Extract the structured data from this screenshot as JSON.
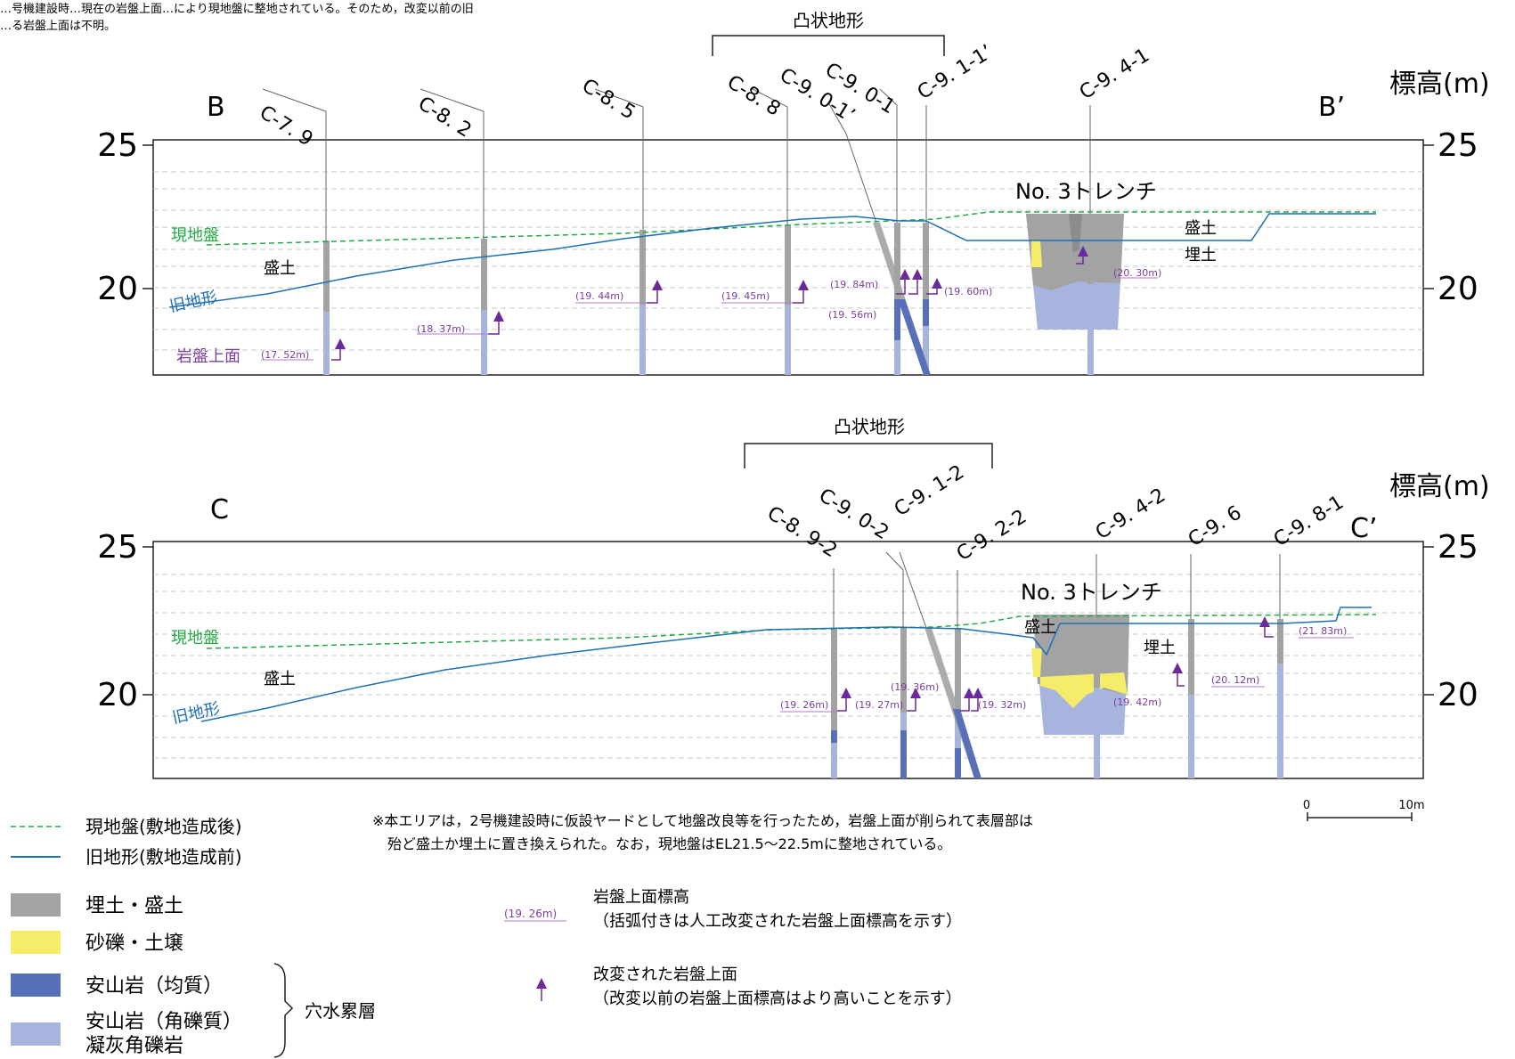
{
  "top_note": [
    "…号機建設時…現在の岩盤上面…により現地盤に整地されている。そのため，改変以前の旧",
    "…る岩盤上面は不明。"
  ],
  "colors": {
    "ground_now": "#22aa44",
    "old_terrain": "#1f6fb5",
    "fill": "#a3a3a3",
    "gravel": "#f5ec6a",
    "andesite": "#5870b8",
    "breccia": "#a6b4de",
    "arrow": "#6b2a9a",
    "label_purple": "#7a3ea0"
  },
  "section_b": {
    "title": "凸状地形",
    "end_left": "B",
    "end_right": "B’",
    "axis_title": "標高(m)",
    "ticks": [
      "25",
      "20"
    ],
    "label_ground": "現地盤",
    "label_old": "旧地形",
    "label_rocktop": "岩盤上面",
    "trench_label": "No. 3トレンチ",
    "soil_labels": [
      "盛土",
      "盛土",
      "埋土"
    ],
    "boreholes": [
      "C-7. 9",
      "C-8. 2",
      "C-8. 5",
      "C-8. 8",
      "C-9. 0-1’",
      "C-9. 0-1",
      "C-9. 1-1’",
      "C-9. 4-1"
    ],
    "elevations": [
      "(17. 52m)",
      "(18. 37m)",
      "(19. 44m)",
      "(19. 45m)",
      "(19. 84m)",
      "(19. 56m)",
      "(19. 60m)",
      "(20. 30m)"
    ]
  },
  "section_c": {
    "title": "凸状地形",
    "end_left": "C",
    "end_right": "C’",
    "axis_title": "標高(m)",
    "ticks": [
      "25",
      "20"
    ],
    "label_ground": "現地盤",
    "label_old": "旧地形",
    "trench_label": "No. 3トレンチ",
    "soil_labels": [
      "盛土",
      "盛土",
      "埋土"
    ],
    "boreholes": [
      "C-8. 9-2",
      "C-9. 0-2",
      "C-9. 1-2",
      "C-9. 2-2",
      "C-9. 4-2",
      "C-9. 6",
      "C-9. 8-1"
    ],
    "elevations": [
      "(19. 26m)",
      "(19. 27m)",
      "(19. 36m)",
      "(19. 32m)",
      "(19. 42m)",
      "(20. 12m)",
      "(21. 83m)"
    ]
  },
  "legend": {
    "lines": [
      {
        "label": "現地盤(敷地造成後)"
      },
      {
        "label": "旧地形(敷地造成前)"
      }
    ],
    "fills": [
      {
        "label": "埋土・盛土"
      },
      {
        "label": "砂礫・土壌"
      },
      {
        "label": "安山岩（均質）"
      },
      {
        "label": "安山岩（角礫質）"
      },
      {
        "label": "凝灰角礫岩"
      }
    ],
    "group_label": "穴水累層",
    "sample_elev": "(19. 26m)",
    "elev_title": "岩盤上面標高",
    "elev_desc": "（括弧付きは人工改変された岩盤上面標高を示す）",
    "arrow_title": "改変された岩盤上面",
    "arrow_desc": "（改変以前の岩盤上面標高はより高いことを示す）"
  },
  "note": [
    "※本エリアは，2号機建設時に仮設ヤードとして地盤改良等を行ったため，岩盤上面が削られて表層部は",
    "殆ど盛土か埋土に置き換えられた。なお，現地盤はEL21.5～22.5mに整地されている。"
  ],
  "scale": {
    "zero": "0",
    "ten": "10m"
  }
}
